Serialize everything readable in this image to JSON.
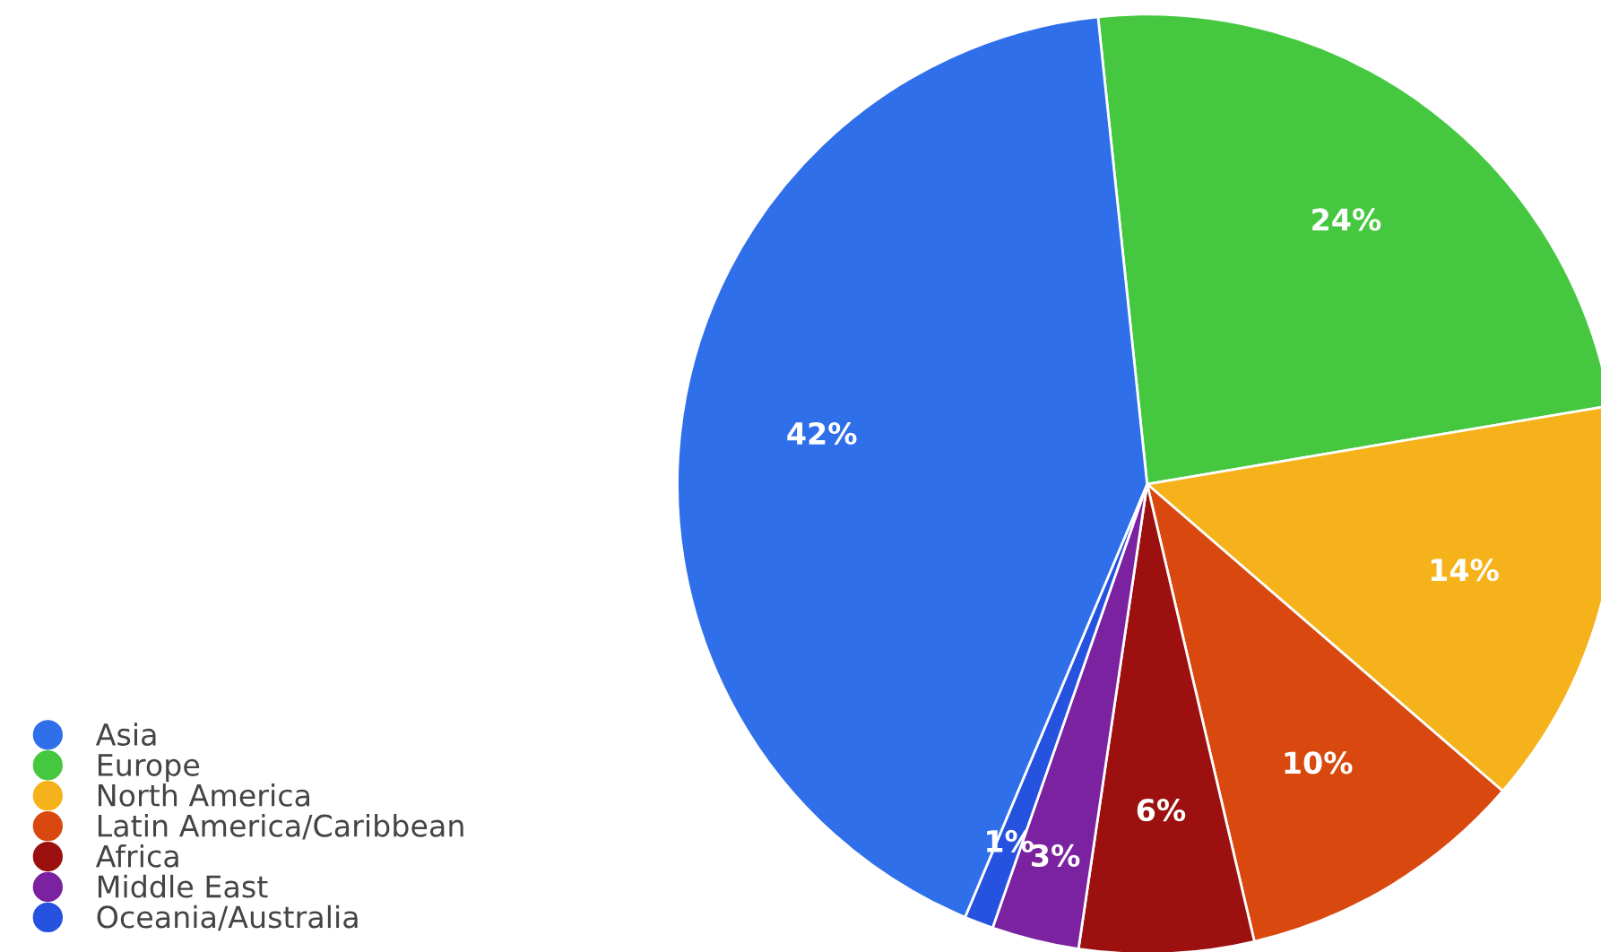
{
  "chart_data": {
    "type": "pie",
    "categories": [
      "Asia",
      "Europe",
      "North America",
      "Latin America/Caribbean",
      "Africa",
      "Middle East",
      "Oceania/Australia"
    ],
    "values": [
      42,
      24,
      14,
      10,
      6,
      3,
      1
    ],
    "value_labels": [
      "42%",
      "24%",
      "14%",
      "10%",
      "6%",
      "3%",
      "1%"
    ],
    "colors": [
      "#2f6fea",
      "#45c83f",
      "#f6b21a",
      "#d9490f",
      "#9c1010",
      "#7b22a0",
      "#2552df"
    ],
    "legend": "bottom left"
  }
}
